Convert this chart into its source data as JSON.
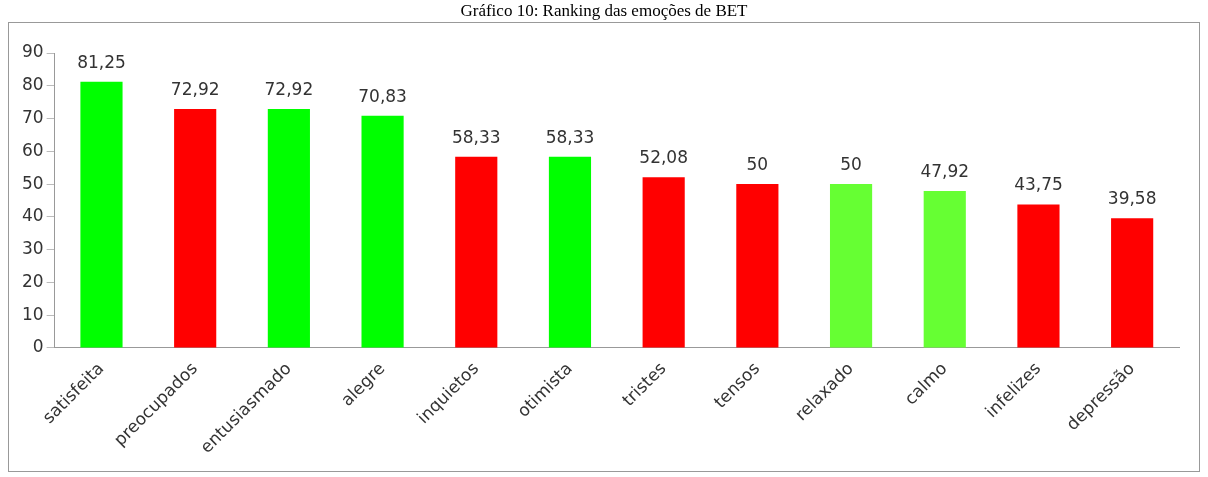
{
  "chart_data": {
    "type": "bar",
    "title": "Gráfico 10: Ranking das emoções de BET",
    "categories": [
      "satisfeita",
      "preocupados",
      "entusiasmado",
      "alegre",
      "inquietos",
      "otimista",
      "tristes",
      "tensos",
      "relaxado",
      "calmo",
      "infelizes",
      "depressão"
    ],
    "values": [
      81.25,
      72.92,
      72.92,
      70.83,
      58.33,
      58.33,
      52.08,
      50,
      50,
      47.92,
      43.75,
      39.58
    ],
    "colors": [
      "#00ff00",
      "#ff0000",
      "#00ff00",
      "#00ff00",
      "#ff0000",
      "#00ff00",
      "#ff0000",
      "#ff0000",
      "#66ff33",
      "#66ff33",
      "#ff0000",
      "#ff0000"
    ],
    "value_labels": [
      "81,25",
      "72,92",
      "72,92",
      "70,83",
      "58,33",
      "58,33",
      "52,08",
      "50",
      "50",
      "47,92",
      "43,75",
      "39,58"
    ],
    "ylim": [
      0,
      90
    ],
    "yticks": [
      0,
      10,
      20,
      30,
      40,
      50,
      60,
      70,
      80,
      90
    ],
    "grid": false,
    "legend": false
  }
}
